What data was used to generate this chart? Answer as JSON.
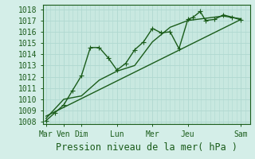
{
  "xlabel": "Pression niveau de la mer( hPa )",
  "bg_color": "#d4eee8",
  "plot_bg_color": "#c8e8e0",
  "grid_color": "#b0d8d0",
  "line_color": "#1a5c1a",
  "ylim": [
    1007.8,
    1018.4
  ],
  "yticks": [
    1008,
    1009,
    1010,
    1011,
    1012,
    1013,
    1014,
    1015,
    1016,
    1017,
    1018
  ],
  "tick_positions": [
    0,
    1,
    2,
    4,
    6,
    8,
    11
  ],
  "tick_labels": [
    "Mar",
    "Ven",
    "Dim",
    "Lun",
    "Mer",
    "Jeu",
    "Sam"
  ],
  "xlim": [
    -0.15,
    11.5
  ],
  "line1_x": [
    0,
    0.5,
    1.0,
    1.5,
    2.0,
    2.5,
    3.0,
    3.5,
    4.0,
    4.5,
    5.0,
    5.5,
    6.0,
    6.5,
    7.0,
    7.5,
    8.0,
    8.3,
    8.7,
    9.0,
    9.5,
    10.0,
    10.5,
    11.0
  ],
  "line1_y": [
    1008.1,
    1008.8,
    1009.5,
    1010.8,
    1012.1,
    1014.6,
    1014.6,
    1013.7,
    1012.6,
    1013.2,
    1014.4,
    1015.1,
    1016.3,
    1015.9,
    1016.0,
    1014.5,
    1017.1,
    1017.3,
    1017.8,
    1017.0,
    1017.1,
    1017.5,
    1017.3,
    1017.05
  ],
  "line2_x": [
    0,
    1,
    2,
    3,
    4,
    5,
    6,
    7,
    8,
    9,
    10,
    11
  ],
  "line2_y": [
    1008.3,
    1010.0,
    1010.3,
    1011.7,
    1012.5,
    1013.0,
    1015.1,
    1016.4,
    1017.0,
    1017.2,
    1017.4,
    1017.15
  ],
  "line3_x": [
    0,
    11
  ],
  "line3_y": [
    1008.5,
    1017.1
  ],
  "markersize": 2.5,
  "linewidth": 1.0,
  "xlabel_fontsize": 8.5,
  "tick_fontsize": 7
}
